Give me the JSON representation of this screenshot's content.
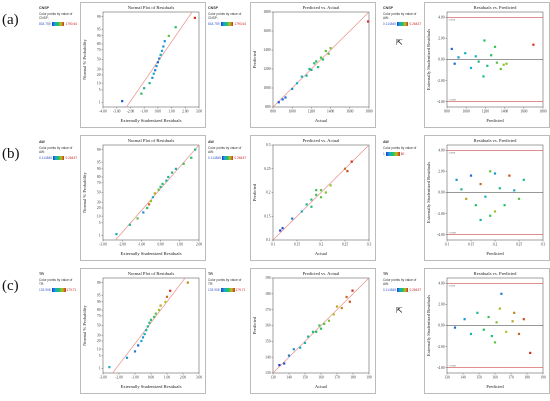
{
  "figure": {
    "rows": [
      {
        "label": "(a)",
        "response": "CNSP",
        "color_text_1": "Color points by value of",
        "color_text_2": "CNSP:",
        "color_low": "818.759",
        "color_high": "1790.64",
        "color_text_c3": "Color points by value of",
        "color_text_c3b": "AW:",
        "color_low_c3": "0.114845",
        "color_high_c3": "0.26437"
      },
      {
        "label": "(b)",
        "response": "AW",
        "color_text_1": "Color points by value of",
        "color_text_2": "AW:",
        "color_low": "0.114845",
        "color_high": "0.26437",
        "color_text_c3": "Color points by value of",
        "color_text_c3b": "",
        "color_low_c3": "1",
        "color_high_c3": "80"
      },
      {
        "label": "(c)",
        "response": "TR",
        "color_text_1": "Color points by value of",
        "color_text_2": "TR:",
        "color_low": "133.908",
        "color_high": "179.71",
        "color_text_c3": "Color points by value of",
        "color_text_c3b": "AW:",
        "color_low_c3": "0.114845",
        "color_high_c3": "0.26437"
      }
    ],
    "colors": {
      "ref_line": "#e8908a",
      "limit_line": "#d04a4a",
      "zero_line": "#333333",
      "gradient": [
        "#1f3fd0",
        "#18a8d8",
        "#22c060",
        "#b8c020",
        "#d03020"
      ]
    }
  },
  "chart_data": [
    {
      "id": "a1",
      "type": "scatter",
      "title": "Normal Plot of Residuals",
      "xlabel": "Externally Studentized Residuals",
      "ylabel": "Normal % Probability",
      "xlim": [
        -4,
        3
      ],
      "xticks": [
        "-4.00",
        "-3.00",
        "-2.00",
        "-1.00",
        "0.00",
        "1.00",
        "2.00",
        "3.00"
      ],
      "yticks": [
        "1",
        "5",
        "10",
        "20",
        "30",
        "50",
        "70",
        "80",
        "90",
        "95",
        "99"
      ],
      "points": [
        [
          -2.6,
          1.2,
          0.05
        ],
        [
          -1.2,
          3.2,
          0.5
        ],
        [
          -1.0,
          6,
          0.35
        ],
        [
          -0.6,
          10,
          0.4
        ],
        [
          -0.4,
          16,
          0.2
        ],
        [
          -0.3,
          22,
          0.3
        ],
        [
          -0.2,
          28,
          0.15
        ],
        [
          -0.1,
          36,
          0.2
        ],
        [
          0.0,
          44,
          0.1
        ],
        [
          0.1,
          52,
          0.15
        ],
        [
          0.2,
          60,
          0.3
        ],
        [
          0.3,
          68,
          0.25
        ],
        [
          0.4,
          76,
          0.2
        ],
        [
          0.5,
          84,
          0.2
        ],
        [
          0.8,
          90,
          0.6
        ],
        [
          1.3,
          96,
          0.5
        ],
        [
          2.7,
          98.8,
          1.0
        ]
      ],
      "refline": true
    },
    {
      "id": "a2",
      "type": "scatter",
      "title": "Predicted vs. Actual",
      "xlabel": "Actual",
      "ylabel": "Predicted",
      "xlim": [
        800,
        1800
      ],
      "ylim": [
        800,
        1800
      ],
      "xticks": [
        "800",
        "1000",
        "1200",
        "1400",
        "1600",
        "1800"
      ],
      "yticks": [
        "800",
        "1000",
        "1200",
        "1400",
        "1600",
        "1800"
      ],
      "points": [
        [
          860,
          850,
          0.05
        ],
        [
          900,
          880,
          0.1
        ],
        [
          930,
          900,
          0.1
        ],
        [
          1000,
          990,
          0.2
        ],
        [
          1050,
          1050,
          0.25
        ],
        [
          1100,
          1120,
          0.3
        ],
        [
          1150,
          1130,
          0.35
        ],
        [
          1200,
          1190,
          0.4
        ],
        [
          1230,
          1260,
          0.5
        ],
        [
          1270,
          1220,
          0.45
        ],
        [
          1300,
          1320,
          0.55
        ],
        [
          1320,
          1300,
          0.5
        ],
        [
          1350,
          1390,
          0.6
        ],
        [
          1380,
          1360,
          0.6
        ],
        [
          1400,
          1420,
          0.65
        ],
        [
          1250,
          1280,
          0.5
        ],
        [
          1180,
          1200,
          0.4
        ],
        [
          1790,
          1700,
          1.0
        ]
      ],
      "refline": true
    },
    {
      "id": "a3",
      "type": "scatter",
      "title": "Residuals vs. Predicted",
      "xlabel": "Predicted",
      "ylabel": "Externally Studentized Residuals",
      "xlim": [
        800,
        1800
      ],
      "ylim": [
        -4.5,
        4.5
      ],
      "xticks": [
        "800",
        "1000",
        "1200",
        "1400",
        "1600",
        "1800"
      ],
      "yticks": [
        "-4.00",
        "-2.00",
        "0.00",
        "2.00",
        "4.00"
      ],
      "limits": [
        3.96,
        -3.96
      ],
      "limit_labels": [
        "3.9588",
        "-3.9588"
      ],
      "points": [
        [
          850,
          1.0,
          0.1
        ],
        [
          880,
          -0.4,
          0.1
        ],
        [
          920,
          0.2,
          0.2
        ],
        [
          990,
          0.6,
          0.3
        ],
        [
          1050,
          -0.8,
          0.25
        ],
        [
          1100,
          0.3,
          0.3
        ],
        [
          1130,
          -0.2,
          0.4
        ],
        [
          1190,
          1.8,
          0.5
        ],
        [
          1220,
          -0.6,
          0.45
        ],
        [
          1260,
          0.4,
          0.5
        ],
        [
          1300,
          1.2,
          0.55
        ],
        [
          1320,
          -0.3,
          0.6
        ],
        [
          1360,
          -0.9,
          0.6
        ],
        [
          1390,
          -0.5,
          0.7
        ],
        [
          1420,
          -0.4,
          0.65
        ],
        [
          1700,
          1.4,
          1.0
        ],
        [
          1180,
          -1.6,
          0.4
        ]
      ]
    },
    {
      "id": "b1",
      "type": "scatter",
      "title": "Normal Plot of Residuals",
      "xlabel": "Externally Studentized Residuals",
      "ylabel": "Normal % Probability",
      "xlim": [
        -3,
        2
      ],
      "xticks": [
        "-3.00",
        "-2.00",
        "-1.00",
        "0.00",
        "1.00",
        "2.00"
      ],
      "yticks": [
        "1",
        "5",
        "10",
        "20",
        "30",
        "50",
        "70",
        "80",
        "90",
        "95",
        "99"
      ],
      "points": [
        [
          -2.3,
          1.2,
          0.3
        ],
        [
          -1.6,
          4,
          0.4
        ],
        [
          -1.2,
          8,
          0.6
        ],
        [
          -0.9,
          14,
          0.2
        ],
        [
          -0.7,
          20,
          0.5
        ],
        [
          -0.6,
          26,
          0.9
        ],
        [
          -0.5,
          32,
          0.7
        ],
        [
          -0.4,
          40,
          0.3
        ],
        [
          -0.3,
          48,
          0.8
        ],
        [
          -0.1,
          56,
          0.6
        ],
        [
          0.0,
          62,
          0.4
        ],
        [
          0.1,
          68,
          0.5
        ],
        [
          0.3,
          74,
          0.35
        ],
        [
          0.4,
          80,
          0.4
        ],
        [
          0.6,
          86,
          0.45
        ],
        [
          0.8,
          90,
          0.3
        ],
        [
          1.2,
          94,
          0.55
        ],
        [
          1.6,
          97,
          0.5
        ],
        [
          1.8,
          99,
          0.45
        ]
      ],
      "refline": true
    },
    {
      "id": "b2",
      "type": "scatter",
      "title": "Predicted vs. Actual",
      "xlabel": "Actual",
      "ylabel": "Predicted",
      "xlim": [
        0.1,
        0.3
      ],
      "ylim": [
        0.1,
        0.3
      ],
      "xticks": [
        "0.1",
        "0.15",
        "0.2",
        "0.25",
        "0.3"
      ],
      "yticks": [
        "0.1",
        "0.15",
        "0.2",
        "0.25",
        "0.3"
      ],
      "points": [
        [
          0.115,
          0.12,
          0.0
        ],
        [
          0.12,
          0.125,
          0.05
        ],
        [
          0.14,
          0.145,
          0.15
        ],
        [
          0.16,
          0.16,
          0.3
        ],
        [
          0.17,
          0.175,
          0.4
        ],
        [
          0.18,
          0.17,
          0.45
        ],
        [
          0.19,
          0.195,
          0.55
        ],
        [
          0.2,
          0.19,
          0.6
        ],
        [
          0.2,
          0.205,
          0.6
        ],
        [
          0.21,
          0.2,
          0.65
        ],
        [
          0.22,
          0.215,
          0.7
        ],
        [
          0.19,
          0.205,
          0.55
        ],
        [
          0.18,
          0.185,
          0.45
        ],
        [
          0.25,
          0.25,
          0.9
        ],
        [
          0.255,
          0.245,
          0.95
        ],
        [
          0.264,
          0.265,
          1.0
        ]
      ],
      "refline": true
    },
    {
      "id": "b3",
      "type": "scatter",
      "title": "Residuals vs. Predicted",
      "xlabel": "Predicted",
      "ylabel": "Externally Studentized Residuals",
      "xlim": [
        0.1,
        0.3
      ],
      "ylim": [
        -4.5,
        4.5
      ],
      "xticks": [
        "0.1",
        "0.15",
        "0.2",
        "0.25",
        "0.3"
      ],
      "yticks": [
        "-4.00",
        "-2.00",
        "0.00",
        "2.00",
        "4.00"
      ],
      "limits": [
        3.96,
        -3.96
      ],
      "limit_labels": [
        "3.9588",
        "-3.9588"
      ],
      "points": [
        [
          0.12,
          1.2,
          0.2
        ],
        [
          0.13,
          0.3,
          0.4
        ],
        [
          0.14,
          -0.6,
          0.8
        ],
        [
          0.15,
          1.6,
          0.1
        ],
        [
          0.16,
          -1.2,
          0.5
        ],
        [
          0.17,
          0.8,
          0.9
        ],
        [
          0.18,
          -0.4,
          0.3
        ],
        [
          0.19,
          2.0,
          0.6
        ],
        [
          0.2,
          1.8,
          0.2
        ],
        [
          0.2,
          -1.8,
          0.7
        ],
        [
          0.21,
          0.4,
          0.4
        ],
        [
          0.22,
          -1.2,
          0.5
        ],
        [
          0.23,
          1.6,
          0.95
        ],
        [
          0.24,
          0.2,
          0.3
        ],
        [
          0.25,
          -0.6,
          0.6
        ],
        [
          0.26,
          1.2,
          0.45
        ],
        [
          0.17,
          -2.6,
          0.35
        ],
        [
          0.19,
          -2.2,
          0.55
        ]
      ]
    },
    {
      "id": "c1",
      "type": "scatter",
      "title": "Normal Plot of Residuals",
      "xlabel": "Externally Studentized Residuals",
      "ylabel": "Normal % Probability",
      "xlim": [
        -3,
        3
      ],
      "xticks": [
        "-3.00",
        "-2.00",
        "-1.00",
        "0.00",
        "1.00",
        "2.00",
        "3.00"
      ],
      "yticks": [
        "1",
        "5",
        "10",
        "20",
        "30",
        "50",
        "70",
        "80",
        "90",
        "95",
        "99"
      ],
      "points": [
        [
          -2.6,
          1.2,
          0.3
        ],
        [
          -1.5,
          4,
          0.2
        ],
        [
          -1.0,
          8,
          0.15
        ],
        [
          -0.8,
          14,
          0.1
        ],
        [
          -0.6,
          20,
          0.25
        ],
        [
          -0.5,
          26,
          0.2
        ],
        [
          -0.4,
          32,
          0.3
        ],
        [
          -0.3,
          40,
          0.35
        ],
        [
          -0.2,
          48,
          0.4
        ],
        [
          -0.1,
          56,
          0.45
        ],
        [
          0.0,
          62,
          0.5
        ],
        [
          0.2,
          68,
          0.55
        ],
        [
          0.3,
          74,
          0.6
        ],
        [
          0.5,
          80,
          0.7
        ],
        [
          0.6,
          86,
          0.8
        ],
        [
          0.9,
          90,
          0.75
        ],
        [
          1.0,
          94,
          0.9
        ],
        [
          1.2,
          97,
          1.0
        ],
        [
          2.3,
          99,
          0.85
        ]
      ],
      "refline": true
    },
    {
      "id": "c2",
      "type": "scatter",
      "title": "Predicted vs. Actual",
      "xlabel": "Actual",
      "ylabel": "Predicted",
      "xlim": [
        130,
        190
      ],
      "ylim": [
        130,
        190
      ],
      "xticks": [
        "130",
        "140",
        "150",
        "160",
        "170",
        "180",
        "190"
      ],
      "yticks": [
        "130",
        "140",
        "150",
        "160",
        "170",
        "180",
        "190"
      ],
      "points": [
        [
          134,
          135,
          0.0
        ],
        [
          137,
          136,
          0.05
        ],
        [
          140,
          141,
          0.15
        ],
        [
          143,
          145,
          0.2
        ],
        [
          147,
          146,
          0.3
        ],
        [
          150,
          149,
          0.35
        ],
        [
          152,
          153,
          0.4
        ],
        [
          155,
          156,
          0.45
        ],
        [
          157,
          156,
          0.5
        ],
        [
          159,
          160,
          0.55
        ],
        [
          162,
          161,
          0.6
        ],
        [
          165,
          163,
          0.65
        ],
        [
          168,
          167,
          0.75
        ],
        [
          170,
          172,
          0.8
        ],
        [
          173,
          171,
          0.85
        ],
        [
          176,
          178,
          0.9
        ],
        [
          178,
          175,
          0.95
        ],
        [
          179.7,
          182,
          1.0
        ],
        [
          160,
          158,
          0.5
        ]
      ],
      "refline": true
    },
    {
      "id": "c3",
      "type": "scatter",
      "title": "Residuals vs. Predicted",
      "xlabel": "Predicted",
      "ylabel": "Externally Studentized Residuals",
      "xlim": [
        130,
        190
      ],
      "ylim": [
        -4.5,
        4.5
      ],
      "xticks": [
        "130",
        "140",
        "150",
        "160",
        "170",
        "180",
        "190"
      ],
      "yticks": [
        "-4.00",
        "-2.00",
        "0.00",
        "2.00",
        "4.00"
      ],
      "limits": [
        3.96,
        -3.96
      ],
      "limit_labels": [
        "3.9588",
        "-3.9588"
      ],
      "points": [
        [
          135,
          -0.2,
          0.1
        ],
        [
          141,
          0.6,
          0.2
        ],
        [
          145,
          -0.8,
          0.3
        ],
        [
          149,
          1.2,
          0.4
        ],
        [
          153,
          -0.4,
          0.5
        ],
        [
          156,
          0.8,
          0.55
        ],
        [
          160,
          -1.6,
          0.6
        ],
        [
          161,
          0.3,
          0.65
        ],
        [
          163,
          1.6,
          0.7
        ],
        [
          167,
          -0.6,
          0.75
        ],
        [
          171,
          0.4,
          0.8
        ],
        [
          172,
          1.2,
          0.85
        ],
        [
          175,
          -0.8,
          0.9
        ],
        [
          178,
          0.6,
          0.95
        ],
        [
          182,
          -2.6,
          1.0
        ],
        [
          164,
          3.0,
          0.15
        ],
        [
          158,
          -1.0,
          0.45
        ]
      ]
    }
  ]
}
